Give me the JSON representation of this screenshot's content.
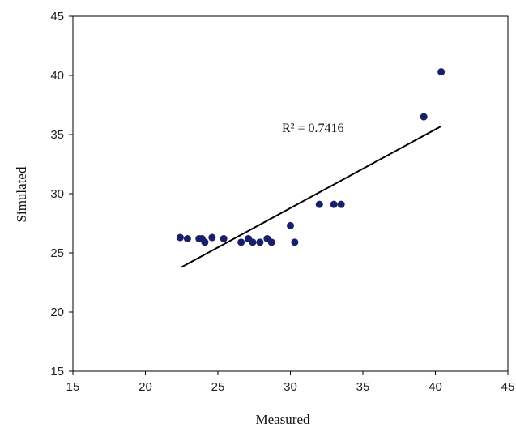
{
  "chart_data": {
    "type": "scatter",
    "title": "",
    "xlabel": "Measured",
    "ylabel": "Simulated",
    "xlim": [
      15,
      45
    ],
    "ylim": [
      15,
      45
    ],
    "xticks": [
      15,
      20,
      25,
      30,
      35,
      40,
      45
    ],
    "yticks": [
      15,
      20,
      25,
      30,
      35,
      40,
      45
    ],
    "grid": false,
    "legend": "none",
    "series": [
      {
        "marker_color": "#1a1f6b",
        "points": [
          [
            22.4,
            26.3
          ],
          [
            22.9,
            26.2
          ],
          [
            23.7,
            26.2
          ],
          [
            23.9,
            26.2
          ],
          [
            24.1,
            25.9
          ],
          [
            24.6,
            26.3
          ],
          [
            25.4,
            26.2
          ],
          [
            26.6,
            25.9
          ],
          [
            27.1,
            26.2
          ],
          [
            27.4,
            25.9
          ],
          [
            27.9,
            25.9
          ],
          [
            28.4,
            26.2
          ],
          [
            28.7,
            25.9
          ],
          [
            30.0,
            27.3
          ],
          [
            30.3,
            25.9
          ],
          [
            32.0,
            29.1
          ],
          [
            33.0,
            29.1
          ],
          [
            33.5,
            29.1
          ],
          [
            39.2,
            36.5
          ],
          [
            40.4,
            40.3
          ]
        ]
      }
    ],
    "trendline": {
      "x": [
        22.5,
        40.4
      ],
      "y": [
        23.8,
        35.7
      ],
      "color": "#000000",
      "label": "R² = 0.7416"
    }
  }
}
